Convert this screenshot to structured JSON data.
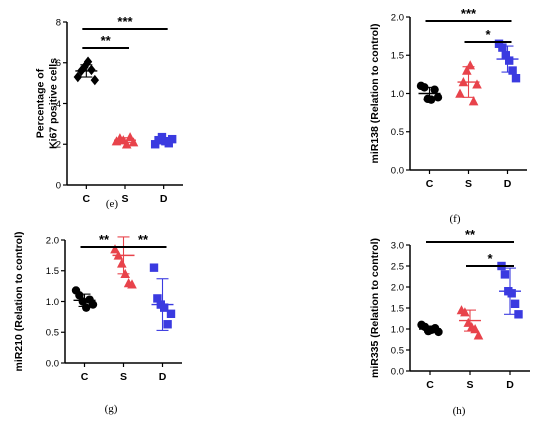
{
  "figure": {
    "panels": [
      "e",
      "f",
      "g",
      "h"
    ]
  },
  "chart_data": [
    {
      "panel": "(e)",
      "type": "scatter",
      "ylabel": "Percentage of\nKi67 positive cells",
      "categories": [
        "C",
        "S",
        "D"
      ],
      "ylim": [
        0,
        8
      ],
      "yticks": [
        "0",
        "2",
        "4",
        "6",
        "8"
      ],
      "grid": false,
      "groups": [
        {
          "category": "C",
          "color": "#000000",
          "marker": "diamond",
          "values": [
            5.3,
            5.6,
            5.8,
            6.05,
            5.65,
            5.15
          ],
          "mean": 5.6,
          "sd": 0.3
        },
        {
          "category": "S",
          "color": "#e8434b",
          "marker": "triangle",
          "values": [
            2.15,
            2.3,
            2.2,
            2.0,
            2.35,
            2.1
          ],
          "mean": 2.2,
          "sd": 0.12
        },
        {
          "category": "D",
          "color": "#3a3ae0",
          "marker": "square",
          "values": [
            2.0,
            2.2,
            2.35,
            2.15,
            2.05,
            2.25
          ],
          "mean": 2.15,
          "sd": 0.12
        }
      ],
      "significance": [
        {
          "from": "C",
          "to": "D",
          "label": "***"
        },
        {
          "from": "C",
          "to": "S",
          "label": "**"
        }
      ]
    },
    {
      "panel": "(f)",
      "type": "scatter",
      "ylabel": "miR138 (Relation to control)",
      "categories": [
        "C",
        "S",
        "D"
      ],
      "ylim": [
        0,
        2.0
      ],
      "yticks": [
        "0.0",
        "0.5",
        "1.0",
        "1.5",
        "2.0"
      ],
      "grid": false,
      "groups": [
        {
          "category": "C",
          "color": "#000000",
          "marker": "circle",
          "values": [
            1.1,
            1.08,
            0.93,
            0.92,
            1.05,
            0.95
          ],
          "mean": 1.0,
          "sd": 0.08
        },
        {
          "category": "S",
          "color": "#e8434b",
          "marker": "triangle",
          "values": [
            1.0,
            1.15,
            1.3,
            1.37,
            0.9,
            1.12
          ],
          "mean": 1.15,
          "sd": 0.2
        },
        {
          "category": "D",
          "color": "#3a3ae0",
          "marker": "square",
          "values": [
            1.65,
            1.6,
            1.5,
            1.43,
            1.3,
            1.2
          ],
          "mean": 1.45,
          "sd": 0.17
        }
      ],
      "significance": [
        {
          "from": "C",
          "to": "D",
          "label": "***"
        },
        {
          "from": "S",
          "to": "D",
          "label": "*"
        }
      ]
    },
    {
      "panel": "(g)",
      "type": "scatter",
      "ylabel": "miR210 (Relation to control)",
      "categories": [
        "C",
        "S",
        "D"
      ],
      "ylim": [
        0,
        2.0
      ],
      "yticks": [
        "0.0",
        "0.5",
        "1.0",
        "1.5",
        "2.0"
      ],
      "grid": false,
      "groups": [
        {
          "category": "C",
          "color": "#000000",
          "marker": "circle",
          "values": [
            1.18,
            1.1,
            1.0,
            0.9,
            1.03,
            0.95
          ],
          "mean": 1.02,
          "sd": 0.1
        },
        {
          "category": "S",
          "color": "#e8434b",
          "marker": "triangle",
          "values": [
            1.85,
            1.75,
            1.62,
            1.45,
            1.3,
            1.28
          ],
          "mean": 1.75,
          "sd": 0.3
        },
        {
          "category": "D",
          "color": "#3a3ae0",
          "marker": "square",
          "values": [
            1.55,
            1.05,
            0.95,
            0.9,
            0.63,
            0.8
          ],
          "mean": 0.95,
          "sd": 0.42
        }
      ],
      "significance": [
        {
          "from": "C",
          "to": "S",
          "label": "**"
        },
        {
          "from": "S",
          "to": "D",
          "label": "**"
        }
      ]
    },
    {
      "panel": "(h)",
      "type": "scatter",
      "ylabel": "miR335 (Relation to control)",
      "categories": [
        "C",
        "S",
        "D"
      ],
      "ylim": [
        0,
        3.0
      ],
      "yticks": [
        "0.0",
        "0.5",
        "1.0",
        "1.5",
        "2.0",
        "2.5",
        "3.0"
      ],
      "grid": false,
      "groups": [
        {
          "category": "C",
          "color": "#000000",
          "marker": "circle",
          "values": [
            1.1,
            1.05,
            0.95,
            0.98,
            1.02,
            0.93
          ],
          "mean": 1.0,
          "sd": 0.07
        },
        {
          "category": "S",
          "color": "#e8434b",
          "marker": "triangle",
          "values": [
            1.45,
            1.4,
            1.15,
            1.05,
            1.0,
            0.85
          ],
          "mean": 1.2,
          "sd": 0.25
        },
        {
          "category": "D",
          "color": "#3a3ae0",
          "marker": "square",
          "values": [
            2.5,
            2.3,
            1.9,
            1.85,
            1.6,
            1.35
          ],
          "mean": 1.9,
          "sd": 0.55
        }
      ],
      "significance": [
        {
          "from": "C",
          "to": "D",
          "label": "**"
        },
        {
          "from": "S",
          "to": "D",
          "label": "*"
        }
      ]
    }
  ]
}
